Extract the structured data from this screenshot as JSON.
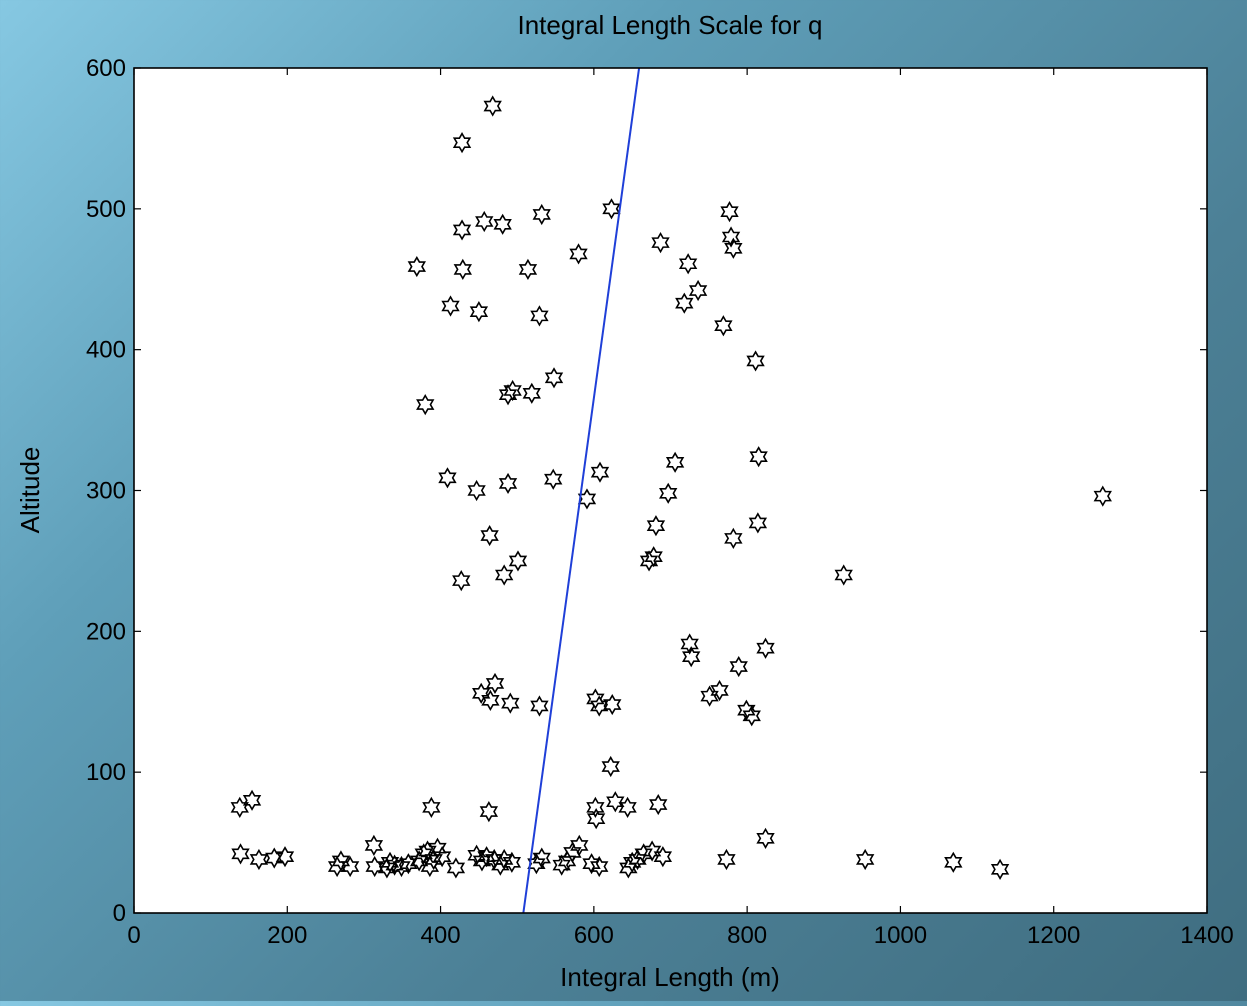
{
  "chart_data": {
    "type": "scatter",
    "title": "Integral Length Scale for q",
    "xlabel": "Integral Length (m)",
    "ylabel": "Altitude",
    "xlim": [
      0,
      1400
    ],
    "ylim": [
      0,
      600
    ],
    "xticks": [
      0,
      200,
      400,
      600,
      800,
      1000,
      1200,
      1400
    ],
    "yticks": [
      0,
      100,
      200,
      300,
      400,
      500,
      600
    ],
    "grid": false,
    "marker": "hexagram",
    "marker_color": "#000000",
    "line_color": "#1f3fd8",
    "series": [
      {
        "type": "scatter",
        "points": [
          [
            468,
            573
          ],
          [
            428,
            547
          ],
          [
            623,
            500
          ],
          [
            777,
            498
          ],
          [
            532,
            496
          ],
          [
            457,
            491
          ],
          [
            481,
            489
          ],
          [
            428,
            485
          ],
          [
            687,
            476
          ],
          [
            779,
            480
          ],
          [
            782,
            472
          ],
          [
            369,
            459
          ],
          [
            429,
            457
          ],
          [
            514,
            457
          ],
          [
            580,
            468
          ],
          [
            723,
            461
          ],
          [
            736,
            442
          ],
          [
            718,
            433
          ],
          [
            413,
            431
          ],
          [
            450,
            427
          ],
          [
            529,
            424
          ],
          [
            769,
            417
          ],
          [
            811,
            392
          ],
          [
            548,
            380
          ],
          [
            494,
            371
          ],
          [
            488,
            368
          ],
          [
            519,
            369
          ],
          [
            380,
            361
          ],
          [
            608,
            313
          ],
          [
            409,
            309
          ],
          [
            706,
            320
          ],
          [
            815,
            324
          ],
          [
            547,
            308
          ],
          [
            488,
            305
          ],
          [
            447,
            300
          ],
          [
            697,
            298
          ],
          [
            591,
            294
          ],
          [
            1264,
            296
          ],
          [
            681,
            275
          ],
          [
            814,
            277
          ],
          [
            464,
            268
          ],
          [
            782,
            266
          ],
          [
            672,
            250
          ],
          [
            678,
            253
          ],
          [
            501,
            250
          ],
          [
            483,
            240
          ],
          [
            427,
            236
          ],
          [
            926,
            240
          ],
          [
            725,
            191
          ],
          [
            727,
            182
          ],
          [
            824,
            188
          ],
          [
            789,
            175
          ],
          [
            471,
            163
          ],
          [
            764,
            158
          ],
          [
            453,
            156
          ],
          [
            465,
            151
          ],
          [
            751,
            154
          ],
          [
            602,
            152
          ],
          [
            607,
            147
          ],
          [
            624,
            148
          ],
          [
            491,
            149
          ],
          [
            529,
            147
          ],
          [
            799,
            144
          ],
          [
            806,
            140
          ],
          [
            622,
            104
          ],
          [
            138,
            75
          ],
          [
            154,
            80
          ],
          [
            388,
            75
          ],
          [
            463,
            72
          ],
          [
            602,
            75
          ],
          [
            603,
            67
          ],
          [
            628,
            79
          ],
          [
            644,
            75
          ],
          [
            684,
            77
          ],
          [
            581,
            48
          ],
          [
            824,
            53
          ],
          [
            313,
            48
          ],
          [
            139,
            42
          ],
          [
            163,
            38
          ],
          [
            183,
            39
          ],
          [
            197,
            40
          ],
          [
            265,
            33
          ],
          [
            270,
            37
          ],
          [
            282,
            33
          ],
          [
            314,
            33
          ],
          [
            330,
            32
          ],
          [
            334,
            36
          ],
          [
            340,
            34
          ],
          [
            349,
            33
          ],
          [
            358,
            35
          ],
          [
            372,
            37
          ],
          [
            378,
            42
          ],
          [
            383,
            44
          ],
          [
            386,
            33
          ],
          [
            391,
            38
          ],
          [
            396,
            46
          ],
          [
            402,
            40
          ],
          [
            420,
            32
          ],
          [
            447,
            41
          ],
          [
            454,
            37
          ],
          [
            460,
            40
          ],
          [
            470,
            38
          ],
          [
            478,
            34
          ],
          [
            483,
            38
          ],
          [
            493,
            36
          ],
          [
            525,
            35
          ],
          [
            532,
            39
          ],
          [
            558,
            34
          ],
          [
            565,
            37
          ],
          [
            572,
            43
          ],
          [
            597,
            35
          ],
          [
            607,
            33
          ],
          [
            645,
            32
          ],
          [
            650,
            36
          ],
          [
            657,
            38
          ],
          [
            665,
            42
          ],
          [
            676,
            44
          ],
          [
            690,
            40
          ],
          [
            773,
            38
          ],
          [
            954,
            38
          ],
          [
            1069,
            36
          ],
          [
            1130,
            31
          ]
        ]
      },
      {
        "type": "line",
        "points": [
          [
            508,
            0
          ],
          [
            659,
            600
          ]
        ]
      }
    ]
  }
}
